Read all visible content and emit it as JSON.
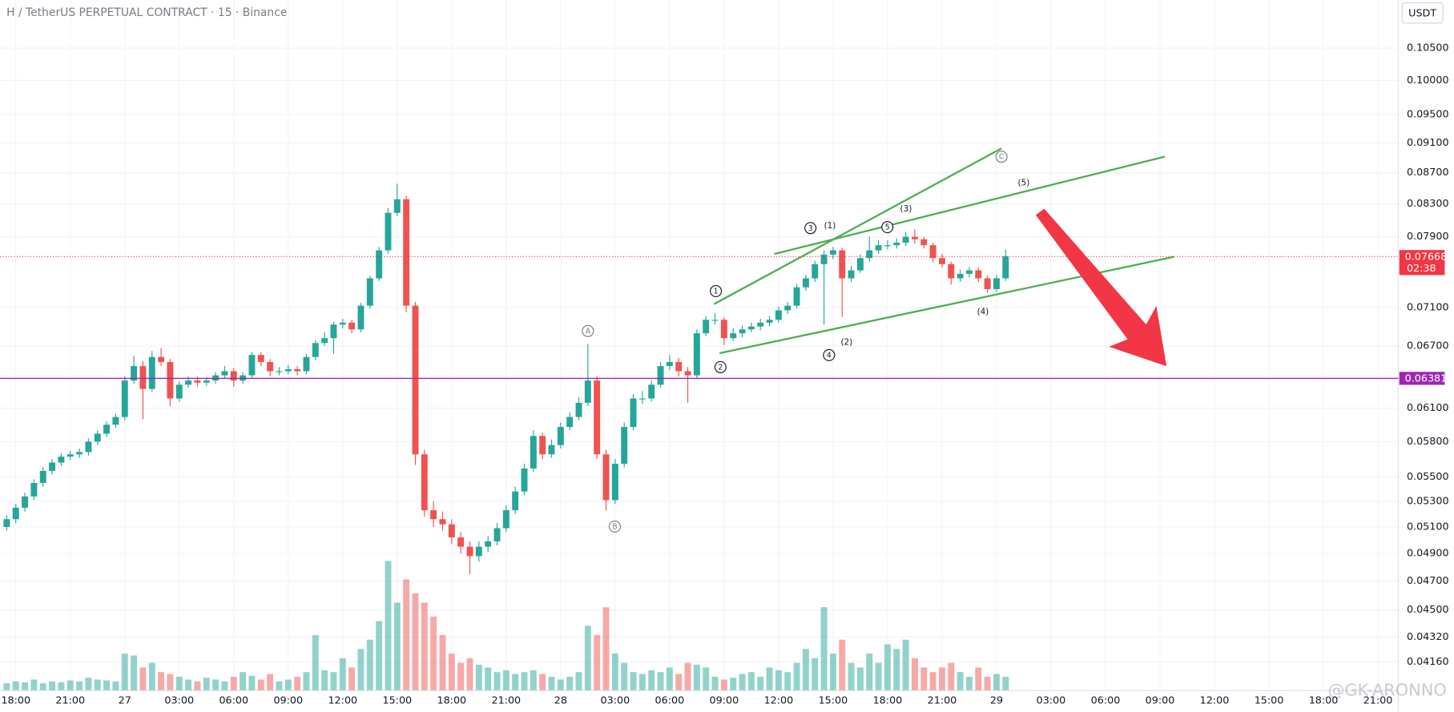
{
  "chart_data": {
    "type": "candlestick",
    "title": "H / TetherUS PERPETUAL CONTRACT · 15 · Binance",
    "currency_button": "USDT",
    "watermark": "@GK-ARONNO",
    "log_scale": true,
    "up_color": "#26a69a",
    "down_color": "#ef5350",
    "xlim": [
      -0.74,
      153.25
    ],
    "ylim": [
      0.03984,
      0.1129
    ],
    "xticks": [
      {
        "value": 1,
        "label": "18:00"
      },
      {
        "value": 7,
        "label": "21:00"
      },
      {
        "value": 13,
        "label": "27"
      },
      {
        "value": 19,
        "label": "03:00"
      },
      {
        "value": 25,
        "label": "06:00"
      },
      {
        "value": 31,
        "label": "09:00"
      },
      {
        "value": 37,
        "label": "12:00"
      },
      {
        "value": 43,
        "label": "15:00"
      },
      {
        "value": 49,
        "label": "18:00"
      },
      {
        "value": 55,
        "label": "21:00"
      },
      {
        "value": 61,
        "label": "28"
      },
      {
        "value": 67,
        "label": "03:00"
      },
      {
        "value": 73,
        "label": "06:00"
      },
      {
        "value": 79,
        "label": "09:00"
      },
      {
        "value": 85,
        "label": "12:00"
      },
      {
        "value": 91,
        "label": "15:00"
      },
      {
        "value": 97,
        "label": "18:00"
      },
      {
        "value": 103,
        "label": "21:00"
      },
      {
        "value": 109,
        "label": "29"
      },
      {
        "value": 115,
        "label": "03:00"
      },
      {
        "value": 121,
        "label": "06:00"
      },
      {
        "value": 127,
        "label": "09:00"
      },
      {
        "value": 133,
        "label": "12:00"
      },
      {
        "value": 139,
        "label": "15:00"
      },
      {
        "value": 145,
        "label": "18:00"
      },
      {
        "value": 151,
        "label": "21:00"
      }
    ],
    "yticks": [
      {
        "value": 0.105,
        "label": "0.10500"
      },
      {
        "value": 0.1,
        "label": "0.10000"
      },
      {
        "value": 0.095,
        "label": "0.09500"
      },
      {
        "value": 0.091,
        "label": "0.09100"
      },
      {
        "value": 0.087,
        "label": "0.08700"
      },
      {
        "value": 0.083,
        "label": "0.08300"
      },
      {
        "value": 0.079,
        "label": "0.07900"
      },
      {
        "value": 0.071,
        "label": "0.07100"
      },
      {
        "value": 0.067,
        "label": "0.06700"
      },
      {
        "value": 0.061,
        "label": "0.06100"
      },
      {
        "value": 0.058,
        "label": "0.05800"
      },
      {
        "value": 0.055,
        "label": "0.05500"
      },
      {
        "value": 0.053,
        "label": "0.05300"
      },
      {
        "value": 0.051,
        "label": "0.05100"
      },
      {
        "value": 0.049,
        "label": "0.04900"
      },
      {
        "value": 0.047,
        "label": "0.04700"
      },
      {
        "value": 0.045,
        "label": "0.04500"
      },
      {
        "value": 0.0432,
        "label": "0.04320"
      },
      {
        "value": 0.0416,
        "label": "0.04160"
      }
    ],
    "open": [
      0.051,
      0.0516,
      0.0525,
      0.0534,
      0.0545,
      0.0555,
      0.0562,
      0.0567,
      0.0569,
      0.0571,
      0.058,
      0.0587,
      0.0595,
      0.0602,
      0.0636,
      0.065,
      0.0628,
      0.0659,
      0.0654,
      0.0619,
      0.0632,
      0.0636,
      0.0634,
      0.0636,
      0.0641,
      0.0645,
      0.0636,
      0.0641,
      0.0661,
      0.0654,
      0.0645,
      0.0645,
      0.0647,
      0.0645,
      0.0659,
      0.0673,
      0.0678,
      0.0692,
      0.0694,
      0.0687,
      0.0712,
      0.0742,
      0.0774,
      0.0819,
      0.0836,
      0.0712,
      0.0569,
      0.0523,
      0.0516,
      0.0512,
      0.0502,
      0.0495,
      0.0488,
      0.0495,
      0.0499,
      0.0509,
      0.0523,
      0.0538,
      0.0557,
      0.0585,
      0.0569,
      0.0577,
      0.0593,
      0.0602,
      0.0615,
      0.0636,
      0.0569,
      0.0531,
      0.0561,
      0.0593,
      0.0619,
      0.0619,
      0.0632,
      0.065,
      0.0654,
      0.0645,
      0.0641,
      0.0683,
      0.0697,
      0.0697,
      0.0678,
      0.0683,
      0.0687,
      0.069,
      0.0694,
      0.0697,
      0.0707,
      0.0712,
      0.0732,
      0.0742,
      0.0758,
      0.0769,
      0.0774,
      0.0742,
      0.0751,
      0.0765,
      0.0774,
      0.078,
      0.078,
      0.0783,
      0.079,
      0.0787,
      0.078,
      0.0765,
      0.0758,
      0.0742,
      0.0747,
      0.0751,
      0.0742,
      0.073,
      0.0742
    ],
    "high": [
      0.0519,
      0.0528,
      0.0537,
      0.0548,
      0.0558,
      0.0565,
      0.057,
      0.0572,
      0.0574,
      0.0583,
      0.059,
      0.0598,
      0.0605,
      0.064,
      0.066,
      0.0655,
      0.0665,
      0.0668,
      0.0657,
      0.0635,
      0.064,
      0.064,
      0.0639,
      0.0644,
      0.065,
      0.0648,
      0.0644,
      0.0664,
      0.0664,
      0.0657,
      0.0649,
      0.0651,
      0.065,
      0.0662,
      0.0676,
      0.0684,
      0.0695,
      0.0698,
      0.0697,
      0.0715,
      0.0745,
      0.0778,
      0.0825,
      0.0856,
      0.084,
      0.0716,
      0.0573,
      0.053,
      0.0522,
      0.0516,
      0.0506,
      0.0499,
      0.0499,
      0.0503,
      0.0513,
      0.0527,
      0.0542,
      0.0561,
      0.059,
      0.0588,
      0.0582,
      0.0597,
      0.0606,
      0.062,
      0.0672,
      0.064,
      0.0573,
      0.0565,
      0.0597,
      0.0623,
      0.0626,
      0.0636,
      0.0654,
      0.0661,
      0.0658,
      0.0649,
      0.0687,
      0.0701,
      0.0704,
      0.07,
      0.0688,
      0.0691,
      0.0694,
      0.0698,
      0.0701,
      0.0711,
      0.0716,
      0.0736,
      0.0746,
      0.0762,
      0.0774,
      0.0778,
      0.0777,
      0.0756,
      0.0769,
      0.079,
      0.0786,
      0.0786,
      0.0788,
      0.0796,
      0.0799,
      0.079,
      0.0783,
      0.077,
      0.0761,
      0.0752,
      0.0755,
      0.0754,
      0.0745,
      0.0746,
      0.0775
    ],
    "low": [
      0.0507,
      0.0513,
      0.0522,
      0.0531,
      0.0542,
      0.0552,
      0.0559,
      0.0564,
      0.0566,
      0.0568,
      0.0577,
      0.0584,
      0.0592,
      0.0599,
      0.0633,
      0.06,
      0.0625,
      0.065,
      0.0612,
      0.0616,
      0.0629,
      0.063,
      0.0631,
      0.0633,
      0.0638,
      0.063,
      0.0633,
      0.0638,
      0.065,
      0.064,
      0.0641,
      0.0642,
      0.0641,
      0.0642,
      0.0656,
      0.067,
      0.0662,
      0.0688,
      0.0683,
      0.0684,
      0.0709,
      0.0739,
      0.077,
      0.0815,
      0.0705,
      0.056,
      0.0518,
      0.051,
      0.0507,
      0.0497,
      0.049,
      0.0475,
      0.0484,
      0.0491,
      0.0496,
      0.0506,
      0.052,
      0.0535,
      0.0554,
      0.0565,
      0.0566,
      0.0574,
      0.059,
      0.0599,
      0.0612,
      0.0565,
      0.0523,
      0.0528,
      0.0558,
      0.059,
      0.0614,
      0.0616,
      0.0629,
      0.0646,
      0.064,
      0.0615,
      0.0638,
      0.068,
      0.0692,
      0.0671,
      0.0675,
      0.0679,
      0.0684,
      0.0686,
      0.069,
      0.0694,
      0.0703,
      0.0709,
      0.0728,
      0.0738,
      0.0692,
      0.0764,
      0.07,
      0.0738,
      0.0748,
      0.0761,
      0.077,
      0.0775,
      0.0776,
      0.0779,
      0.0782,
      0.0776,
      0.076,
      0.0754,
      0.0735,
      0.0738,
      0.0743,
      0.0738,
      0.0726,
      0.0727,
      0.0739
    ],
    "close": [
      0.0516,
      0.0525,
      0.0534,
      0.0545,
      0.0555,
      0.0562,
      0.0567,
      0.0569,
      0.0571,
      0.058,
      0.0587,
      0.0595,
      0.0602,
      0.0636,
      0.065,
      0.0628,
      0.0659,
      0.0654,
      0.0619,
      0.0632,
      0.0636,
      0.0634,
      0.0636,
      0.0641,
      0.0645,
      0.0636,
      0.0641,
      0.0661,
      0.0654,
      0.0645,
      0.0645,
      0.0647,
      0.0645,
      0.0659,
      0.0673,
      0.0678,
      0.0692,
      0.0694,
      0.0687,
      0.0712,
      0.0742,
      0.0774,
      0.0819,
      0.0836,
      0.0712,
      0.0569,
      0.0523,
      0.0516,
      0.0512,
      0.0502,
      0.0495,
      0.0488,
      0.0495,
      0.0499,
      0.0509,
      0.0523,
      0.0538,
      0.0557,
      0.0585,
      0.0569,
      0.0577,
      0.0593,
      0.0602,
      0.0615,
      0.0636,
      0.0569,
      0.0531,
      0.0561,
      0.0593,
      0.0619,
      0.0619,
      0.0632,
      0.065,
      0.0654,
      0.0645,
      0.0641,
      0.0683,
      0.0697,
      0.0697,
      0.0678,
      0.0683,
      0.0687,
      0.069,
      0.0694,
      0.0697,
      0.0707,
      0.0712,
      0.0732,
      0.0742,
      0.0758,
      0.0769,
      0.0774,
      0.0742,
      0.0751,
      0.0765,
      0.0774,
      0.078,
      0.078,
      0.0783,
      0.079,
      0.0787,
      0.078,
      0.0765,
      0.0758,
      0.0742,
      0.0747,
      0.0751,
      0.0742,
      0.073,
      0.0742,
      0.0767
    ],
    "volume": [
      8,
      10,
      9,
      12,
      8,
      10,
      9,
      11,
      10,
      14,
      12,
      11,
      10,
      40,
      38,
      25,
      30,
      20,
      18,
      15,
      12,
      10,
      14,
      12,
      10,
      15,
      20,
      16,
      12,
      18,
      10,
      12,
      15,
      20,
      60,
      22,
      20,
      35,
      25,
      45,
      55,
      75,
      140,
      95,
      120,
      105,
      95,
      80,
      60,
      40,
      30,
      35,
      28,
      25,
      20,
      22,
      18,
      20,
      22,
      18,
      15,
      12,
      15,
      20,
      70,
      60,
      90,
      40,
      30,
      20,
      18,
      22,
      20,
      25,
      18,
      30,
      28,
      25,
      15,
      12,
      14,
      18,
      20,
      15,
      25,
      22,
      20,
      30,
      45,
      35,
      90,
      40,
      55,
      30,
      25,
      40,
      30,
      50,
      45,
      55,
      35,
      25,
      20,
      25,
      30,
      20,
      15,
      25,
      15,
      18,
      15
    ],
    "last_price": 0.07668,
    "countdown": "02:38",
    "last_price_color": "#f23645",
    "level": 0.06381,
    "level_color": "#9c27b0",
    "wave_labels": [
      "1",
      "2",
      "3",
      "4",
      "5",
      "(1)",
      "(2)",
      "(3)",
      "(4)",
      "(5)",
      "A",
      "B",
      "C"
    ]
  }
}
